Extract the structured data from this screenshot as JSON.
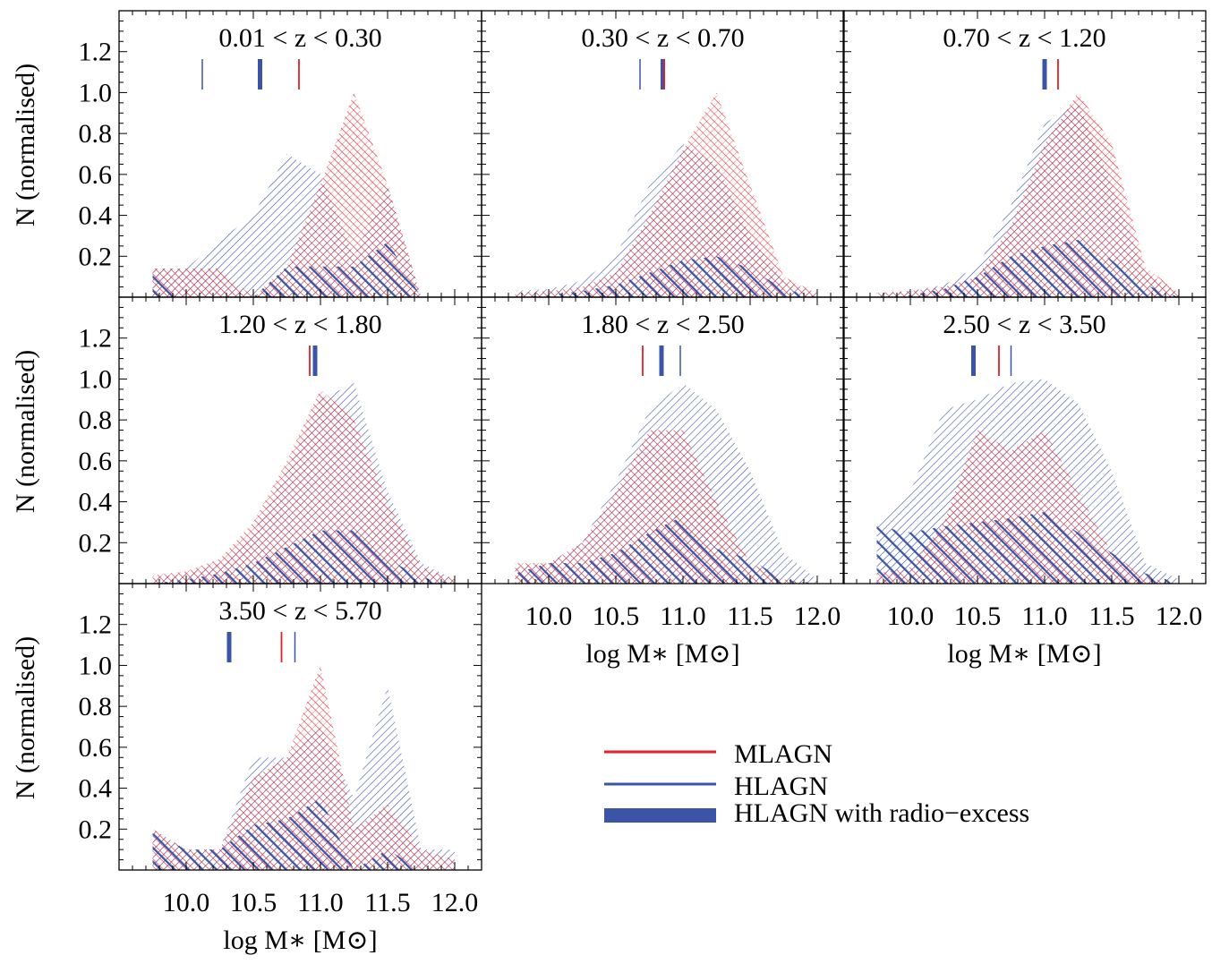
{
  "colors": {
    "mlagn": "#e0202a",
    "hlagn": "#3b54a8",
    "axis": "#000000"
  },
  "ylabel": "N (normalised)",
  "xlabel": "log M∗ [M⊙]",
  "yticks": [
    "0.2",
    "0.4",
    "0.6",
    "0.8",
    "1.0",
    "1.2"
  ],
  "xticks": [
    "10.0",
    "10.5",
    "11.0",
    "11.5",
    "12.0"
  ],
  "legend": {
    "items": [
      {
        "label": "MLAGN",
        "style": "thin-red"
      },
      {
        "label": "HLAGN",
        "style": "thin-blue"
      },
      {
        "label": "HLAGN with radio−excess",
        "style": "thick-blue"
      }
    ]
  },
  "chart_data": [
    {
      "type": "area",
      "title": "0.01 < z < 0.30",
      "xlim": [
        9.5,
        12.2
      ],
      "ylim": [
        0,
        1.4
      ],
      "x": [
        9.75,
        10.0,
        10.25,
        10.5,
        10.75,
        11.0,
        11.25,
        11.5,
        11.75,
        12.0
      ],
      "series": [
        {
          "name": "MLAGN",
          "values": [
            0.14,
            0.14,
            0.14,
            0.0,
            0.15,
            0.55,
            1.0,
            0.55,
            0.0,
            0.0
          ]
        },
        {
          "name": "HLAGN",
          "values": [
            0.14,
            0.14,
            0.28,
            0.4,
            0.7,
            0.6,
            0.2,
            0.55,
            0.0,
            0.0
          ]
        },
        {
          "name": "HLAGN with radio−excess",
          "values": [
            0.14,
            0.0,
            0.0,
            0.0,
            0.15,
            0.15,
            0.15,
            0.27,
            0.0,
            0.0
          ]
        }
      ],
      "medians": {
        "MLAGN": 10.84,
        "HLAGN": 10.12,
        "HLAGN with radio−excess": 10.55
      }
    },
    {
      "type": "area",
      "title": "0.30 < z < 0.70",
      "xlim": [
        9.5,
        12.2
      ],
      "ylim": [
        0,
        1.4
      ],
      "x": [
        9.75,
        10.0,
        10.25,
        10.5,
        10.75,
        11.0,
        11.25,
        11.5,
        11.75,
        12.0
      ],
      "series": [
        {
          "name": "MLAGN",
          "values": [
            0.02,
            0.03,
            0.05,
            0.12,
            0.4,
            0.72,
            1.0,
            0.55,
            0.1,
            0.02
          ]
        },
        {
          "name": "HLAGN",
          "values": [
            0.03,
            0.04,
            0.08,
            0.2,
            0.55,
            0.75,
            0.65,
            0.3,
            0.08,
            0.02
          ]
        },
        {
          "name": "HLAGN with radio−excess",
          "values": [
            0.0,
            0.01,
            0.03,
            0.06,
            0.12,
            0.18,
            0.2,
            0.14,
            0.04,
            0.0
          ]
        }
      ],
      "medians": {
        "MLAGN": 10.86,
        "HLAGN": 10.68,
        "HLAGN with radio−excess": 10.85
      }
    },
    {
      "type": "area",
      "title": "0.70 < z < 1.20",
      "xlim": [
        9.5,
        12.2
      ],
      "ylim": [
        0,
        1.4
      ],
      "x": [
        9.75,
        10.0,
        10.25,
        10.5,
        10.75,
        11.0,
        11.25,
        11.5,
        11.75,
        12.0
      ],
      "series": [
        {
          "name": "MLAGN",
          "values": [
            0.02,
            0.03,
            0.05,
            0.1,
            0.35,
            0.75,
            1.0,
            0.75,
            0.15,
            0.02
          ]
        },
        {
          "name": "HLAGN",
          "values": [
            0.02,
            0.03,
            0.06,
            0.15,
            0.45,
            0.85,
            0.95,
            0.55,
            0.12,
            0.02
          ]
        },
        {
          "name": "HLAGN with radio−excess",
          "values": [
            0.0,
            0.01,
            0.04,
            0.1,
            0.2,
            0.25,
            0.28,
            0.18,
            0.06,
            0.0
          ]
        }
      ],
      "medians": {
        "MLAGN": 11.1,
        "HLAGN": 11.0,
        "HLAGN with radio−excess": 11.0
      }
    },
    {
      "type": "area",
      "title": "1.20 < z < 1.80",
      "xlim": [
        9.5,
        12.2
      ],
      "ylim": [
        0,
        1.4
      ],
      "x": [
        9.75,
        10.0,
        10.25,
        10.5,
        10.75,
        11.0,
        11.25,
        11.5,
        11.75,
        12.0
      ],
      "series": [
        {
          "name": "MLAGN",
          "values": [
            0.04,
            0.06,
            0.12,
            0.3,
            0.6,
            0.95,
            0.8,
            0.4,
            0.08,
            0.02
          ]
        },
        {
          "name": "HLAGN",
          "values": [
            0.03,
            0.05,
            0.1,
            0.25,
            0.55,
            0.9,
            0.98,
            0.45,
            0.1,
            0.02
          ]
        },
        {
          "name": "HLAGN with radio−excess",
          "values": [
            0.0,
            0.02,
            0.05,
            0.1,
            0.18,
            0.26,
            0.26,
            0.12,
            0.03,
            0.0
          ]
        }
      ],
      "medians": {
        "MLAGN": 10.92,
        "HLAGN": 10.97,
        "HLAGN with radio−excess": 10.96
      }
    },
    {
      "type": "area",
      "title": "1.80 < z < 2.50",
      "xlim": [
        9.5,
        12.2
      ],
      "ylim": [
        0,
        1.4
      ],
      "x": [
        9.75,
        10.0,
        10.25,
        10.5,
        10.75,
        11.0,
        11.25,
        11.5,
        11.75,
        12.0
      ],
      "series": [
        {
          "name": "MLAGN",
          "values": [
            0.1,
            0.1,
            0.2,
            0.45,
            0.75,
            0.75,
            0.4,
            0.1,
            0.02,
            0.0
          ]
        },
        {
          "name": "HLAGN",
          "values": [
            0.08,
            0.1,
            0.2,
            0.5,
            0.85,
            0.98,
            0.85,
            0.55,
            0.15,
            0.02
          ]
        },
        {
          "name": "HLAGN with radio−excess",
          "values": [
            0.05,
            0.1,
            0.1,
            0.15,
            0.25,
            0.33,
            0.17,
            0.12,
            0.02,
            0.0
          ]
        }
      ],
      "medians": {
        "MLAGN": 10.7,
        "HLAGN": 10.98,
        "HLAGN with radio−excess": 10.84
      }
    },
    {
      "type": "area",
      "title": "2.50 < z < 3.50",
      "xlim": [
        9.5,
        12.2
      ],
      "ylim": [
        0,
        1.4
      ],
      "x": [
        9.75,
        10.0,
        10.25,
        10.5,
        10.75,
        11.0,
        11.25,
        11.5,
        11.75,
        12.0
      ],
      "series": [
        {
          "name": "MLAGN",
          "values": [
            0.05,
            0.08,
            0.3,
            0.75,
            0.65,
            0.75,
            0.45,
            0.15,
            0.03,
            0.0
          ]
        },
        {
          "name": "HLAGN",
          "values": [
            0.3,
            0.45,
            0.85,
            0.9,
            0.98,
            1.0,
            0.88,
            0.55,
            0.1,
            0.02
          ]
        },
        {
          "name": "HLAGN with radio−excess",
          "values": [
            0.28,
            0.25,
            0.28,
            0.3,
            0.32,
            0.35,
            0.25,
            0.15,
            0.05,
            0.0
          ]
        }
      ],
      "medians": {
        "MLAGN": 10.66,
        "HLAGN": 10.75,
        "HLAGN with radio−excess": 10.47
      }
    },
    {
      "type": "area",
      "title": "3.50 < z < 5.70",
      "xlim": [
        9.5,
        12.2
      ],
      "ylim": [
        0,
        1.4
      ],
      "x": [
        9.75,
        10.0,
        10.25,
        10.5,
        10.75,
        11.0,
        11.25,
        11.5,
        11.75,
        12.0
      ],
      "series": [
        {
          "name": "MLAGN",
          "values": [
            0.2,
            0.1,
            0.1,
            0.45,
            0.55,
            1.0,
            0.2,
            0.32,
            0.1,
            0.05
          ]
        },
        {
          "name": "HLAGN",
          "values": [
            0.2,
            0.1,
            0.1,
            0.55,
            0.55,
            0.7,
            0.35,
            0.9,
            0.1,
            0.1
          ]
        },
        {
          "name": "HLAGN with radio−excess",
          "values": [
            0.18,
            0.1,
            0.1,
            0.22,
            0.25,
            0.35,
            0.0,
            0.1,
            0.0,
            0.0
          ]
        }
      ],
      "medians": {
        "MLAGN": 10.71,
        "HLAGN": 10.81,
        "HLAGN with radio−excess": 10.32
      }
    }
  ]
}
